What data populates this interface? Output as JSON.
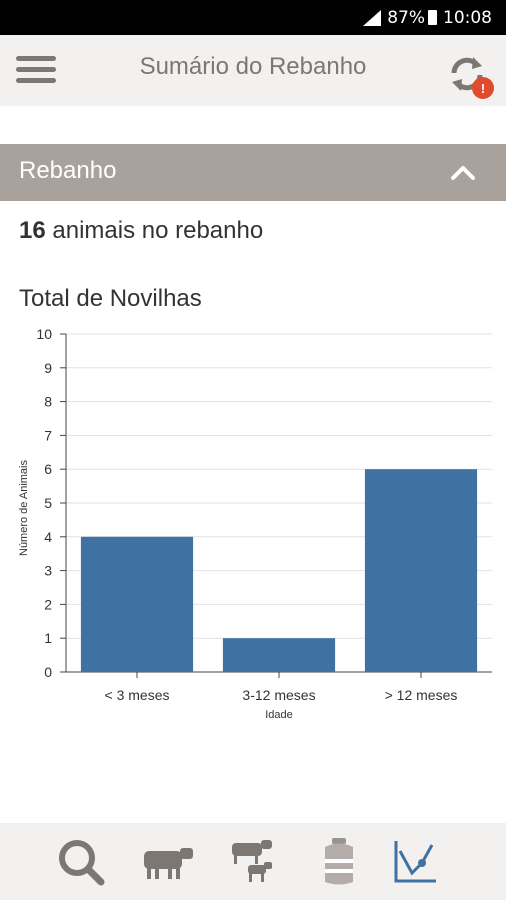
{
  "status_bar": {
    "battery": "87%",
    "time": "10:08"
  },
  "app_bar": {
    "title": "Sumário do Rebanho",
    "sync_badge": "!"
  },
  "section": {
    "title": "Rebanho",
    "expanded": true
  },
  "herd_summary": {
    "count": "16",
    "text": "animais no rebanho"
  },
  "chart_title": "Total de Novilhas",
  "chart_data": {
    "type": "bar",
    "title": "Total de Novilhas",
    "categories": [
      "< 3 meses",
      "3-12 meses",
      "> 12 meses"
    ],
    "values": [
      4,
      1,
      6
    ],
    "xlabel": "Idade",
    "ylabel": "Número de Animais",
    "ylim": [
      0,
      10
    ],
    "yticks": [
      "0",
      "1",
      "2",
      "3",
      "4",
      "5",
      "6",
      "7",
      "8",
      "9",
      "10"
    ],
    "grid": true,
    "bar_color": "#3f72a3"
  },
  "bottom_nav": {
    "items": [
      {
        "icon": "search-icon"
      },
      {
        "icon": "cow-icon"
      },
      {
        "icon": "cow-calf-icon"
      },
      {
        "icon": "milk-can-icon"
      },
      {
        "icon": "chart-icon",
        "active": true
      }
    ]
  },
  "colors": {
    "accent": "#3f72a3",
    "header_bg": "#a9a19c",
    "appbar_bg": "#f2f1ef",
    "icon_gray": "#7d7773",
    "badge_red": "#e04b2d"
  }
}
